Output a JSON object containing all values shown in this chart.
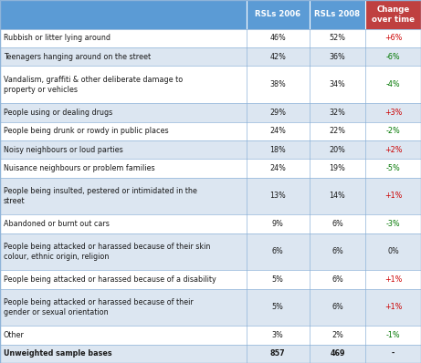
{
  "col_headers": [
    "RSLs 2006",
    "RSLs 2008",
    "Change\nover time"
  ],
  "rows": [
    {
      "label": "Rubbish or litter lying around",
      "v2006": "46%",
      "v2008": "52%",
      "change": "+6%",
      "change_color": "red"
    },
    {
      "label": "Teenagers hanging around on the street",
      "v2006": "42%",
      "v2008": "36%",
      "change": "-6%",
      "change_color": "green"
    },
    {
      "label": "Vandalism, graffiti & other deliberate damage to\nproperty or vehicles",
      "v2006": "38%",
      "v2008": "34%",
      "change": "-4%",
      "change_color": "green"
    },
    {
      "label": "People using or dealing drugs",
      "v2006": "29%",
      "v2008": "32%",
      "change": "+3%",
      "change_color": "red"
    },
    {
      "label": "People being drunk or rowdy in public places",
      "v2006": "24%",
      "v2008": "22%",
      "change": "-2%",
      "change_color": "green"
    },
    {
      "label": "Noisy neighbours or loud parties",
      "v2006": "18%",
      "v2008": "20%",
      "change": "+2%",
      "change_color": "red"
    },
    {
      "label": "Nuisance neighbours or problem families",
      "v2006": "24%",
      "v2008": "19%",
      "change": "-5%",
      "change_color": "green"
    },
    {
      "label": "People being insulted, pestered or intimidated in the\nstreet",
      "v2006": "13%",
      "v2008": "14%",
      "change": "+1%",
      "change_color": "red"
    },
    {
      "label": "Abandoned or burnt out cars",
      "v2006": "9%",
      "v2008": "6%",
      "change": "-3%",
      "change_color": "green"
    },
    {
      "label": "People being attacked or harassed because of their skin\ncolour, ethnic origin, religion",
      "v2006": "6%",
      "v2008": "6%",
      "change": "0%",
      "change_color": "black"
    },
    {
      "label": "People being attacked or harassed because of a disability",
      "v2006": "5%",
      "v2008": "6%",
      "change": "+1%",
      "change_color": "red"
    },
    {
      "label": "People being attacked or harassed because of their\ngender or sexual orientation",
      "v2006": "5%",
      "v2008": "6%",
      "change": "+1%",
      "change_color": "red"
    },
    {
      "label": "Other",
      "v2006": "3%",
      "v2008": "2%",
      "change": "-1%",
      "change_color": "green"
    },
    {
      "label": "Unweighted sample bases",
      "v2006": "857",
      "v2008": "469",
      "change": "-",
      "change_color": "black",
      "bold": true
    }
  ],
  "header_bg": "#5b9bd5",
  "header_text_color": "#ffffff",
  "col_header_last_bg": "#bf4040",
  "row_bg_alt": "#dce6f1",
  "row_bg_norm": "#ffffff",
  "border_color": "#8fb4d9",
  "text_color": "#1a1a1a",
  "red_color": "#cc0000",
  "green_color": "#007700",
  "fig_width": 4.61,
  "fig_height": 3.98,
  "dpi": 100
}
